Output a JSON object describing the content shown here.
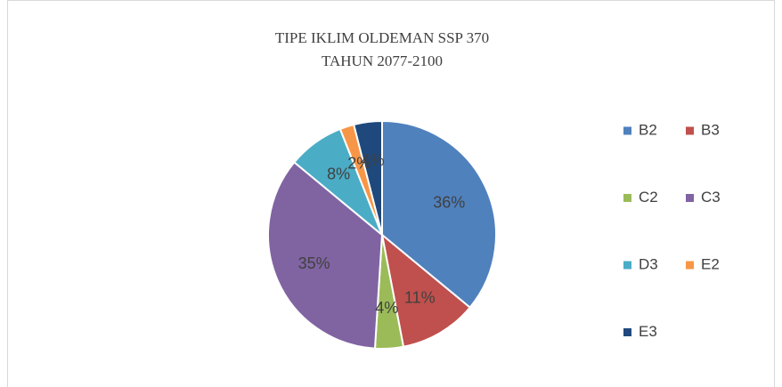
{
  "chart_data": {
    "type": "pie",
    "title": "TIPE IKLIM OLDEMAN  SSP 370",
    "subtitle": "TAHUN 2077-2100",
    "categories": [
      "B2",
      "B3",
      "C2",
      "C3",
      "D3",
      "E2",
      "E3"
    ],
    "values": [
      36,
      11,
      4,
      35,
      8,
      2,
      4
    ],
    "value_labels": [
      "36%",
      "11%",
      "4%",
      "35%",
      "8%",
      "2%",
      "4%"
    ],
    "colors": [
      "#4f81bd",
      "#c0504d",
      "#9bbb59",
      "#8064a2",
      "#4bacc6",
      "#f79646",
      "#1f497d"
    ],
    "legend": "right"
  }
}
